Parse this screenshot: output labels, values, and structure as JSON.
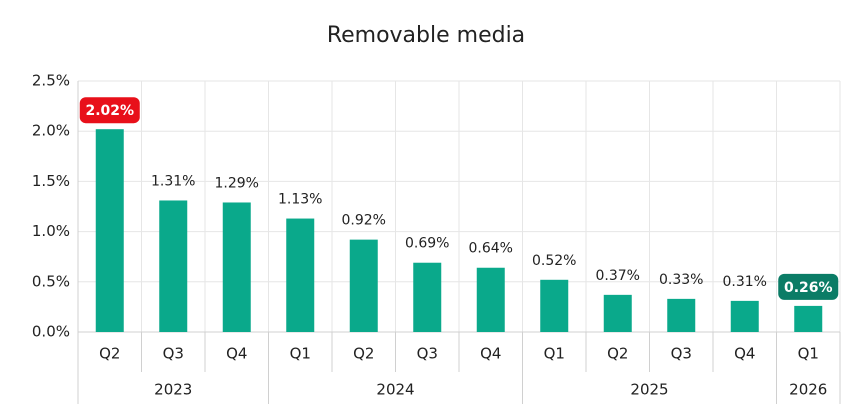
{
  "chart_data": {
    "type": "bar",
    "title": "Removable media",
    "groups": [
      {
        "name": "2023",
        "categories": [
          "Q2",
          "Q3",
          "Q4"
        ]
      },
      {
        "name": "2024",
        "categories": [
          "Q1",
          "Q2",
          "Q3",
          "Q4"
        ]
      },
      {
        "name": "2025",
        "categories": [
          "Q1",
          "Q2",
          "Q3",
          "Q4"
        ]
      },
      {
        "name": "2026",
        "categories": [
          "Q1"
        ]
      }
    ],
    "values": [
      2.02,
      1.31,
      1.29,
      1.13,
      0.92,
      0.69,
      0.64,
      0.52,
      0.37,
      0.33,
      0.31,
      0.26
    ],
    "value_labels": [
      "2.02%",
      "1.31%",
      "1.29%",
      "1.13%",
      "0.92%",
      "0.69%",
      "0.64%",
      "0.52%",
      "0.37%",
      "0.33%",
      "0.31%",
      "0.26%"
    ],
    "value_label_backgrounds": [
      "#e8101a",
      null,
      null,
      null,
      null,
      null,
      null,
      null,
      null,
      null,
      null,
      "#0b7c66"
    ],
    "color": "#0aa98b",
    "ylim": [
      0,
      2.5
    ],
    "yticks": [
      {
        "value": 0,
        "label": "0.0%"
      },
      {
        "value": 0.5,
        "label": "0.5%"
      },
      {
        "value": 1,
        "label": "1.0%"
      },
      {
        "value": 1.5,
        "label": "1.5%"
      },
      {
        "value": 2,
        "label": "2.0%"
      },
      {
        "value": 2.5,
        "label": "2.5%"
      }
    ],
    "grid": true
  }
}
